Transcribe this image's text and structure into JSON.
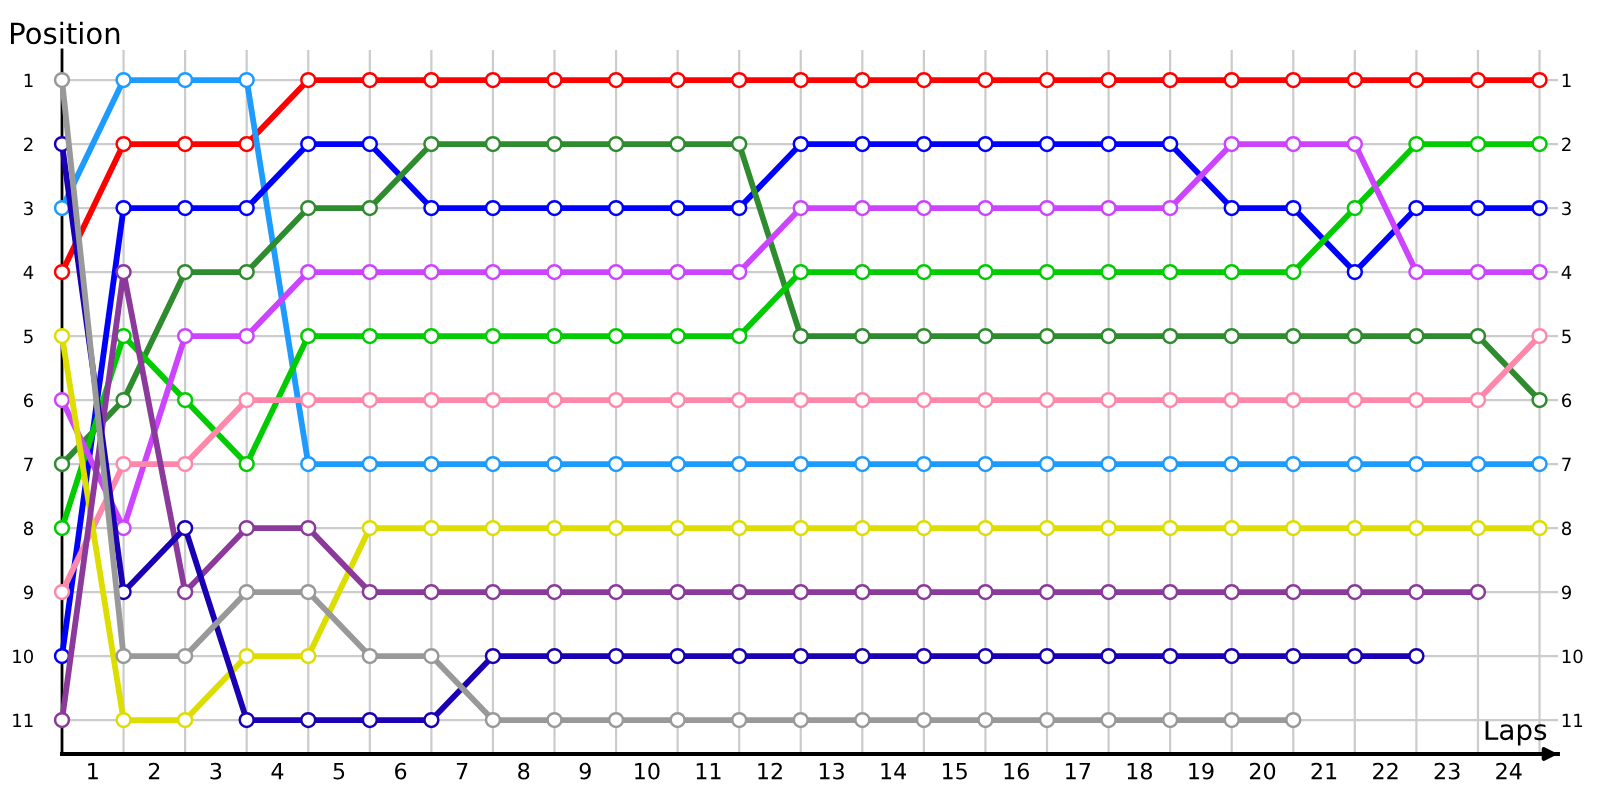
{
  "chart_data": {
    "type": "line",
    "xlabel": "Laps",
    "ylabel": "Position",
    "marker": "circle",
    "line_style": "solid",
    "grid": true,
    "x": [
      0,
      1,
      2,
      3,
      4,
      5,
      6,
      7,
      8,
      9,
      10,
      11,
      12,
      13,
      14,
      15,
      16,
      17,
      18,
      19,
      20,
      21,
      22,
      23,
      24
    ],
    "xlim": [
      0,
      24.3
    ],
    "xticks": [
      {
        "value": 1,
        "label": null
      },
      {
        "value": 2,
        "label": null
      },
      {
        "value": 3,
        "label": null
      },
      {
        "value": 4,
        "label": null
      },
      {
        "value": 5,
        "label": null
      },
      {
        "value": 6,
        "label": null
      },
      {
        "value": 7,
        "label": null
      },
      {
        "value": 8,
        "label": null
      },
      {
        "value": 9,
        "label": null
      },
      {
        "value": 10,
        "label": null
      },
      {
        "value": 11,
        "label": null
      },
      {
        "value": 12,
        "label": null
      },
      {
        "value": 13,
        "label": null
      },
      {
        "value": 14,
        "label": null
      },
      {
        "value": 15,
        "label": null
      },
      {
        "value": 16,
        "label": null
      },
      {
        "value": 17,
        "label": null
      },
      {
        "value": 18,
        "label": null
      },
      {
        "value": 19,
        "label": null
      },
      {
        "value": 20,
        "label": null
      },
      {
        "value": 21,
        "label": null
      },
      {
        "value": 22,
        "label": null
      },
      {
        "value": 23,
        "label": null
      },
      {
        "value": 24,
        "label": null
      },
      {
        "value": 0.5,
        "label": "1"
      },
      {
        "value": 1.5,
        "label": "2"
      },
      {
        "value": 2.5,
        "label": "3"
      },
      {
        "value": 3.5,
        "label": "4"
      },
      {
        "value": 4.5,
        "label": "5"
      },
      {
        "value": 5.5,
        "label": "6"
      },
      {
        "value": 6.5,
        "label": "7"
      },
      {
        "value": 7.5,
        "label": "8"
      },
      {
        "value": 8.5,
        "label": "9"
      },
      {
        "value": 9.5,
        "label": "10"
      },
      {
        "value": 10.5,
        "label": "11"
      },
      {
        "value": 11.5,
        "label": "12"
      },
      {
        "value": 12.5,
        "label": "13"
      },
      {
        "value": 13.5,
        "label": "14"
      },
      {
        "value": 14.5,
        "label": "15"
      },
      {
        "value": 15.5,
        "label": "16"
      },
      {
        "value": 16.5,
        "label": "17"
      },
      {
        "value": 17.5,
        "label": "18"
      },
      {
        "value": 18.5,
        "label": "19"
      },
      {
        "value": 19.5,
        "label": "20"
      },
      {
        "value": 20.5,
        "label": "21"
      },
      {
        "value": 21.5,
        "label": "22"
      },
      {
        "value": 22.5,
        "label": "23"
      },
      {
        "value": 23.5,
        "label": "24"
      }
    ],
    "ylim": [
      11.53,
      0.53
    ],
    "yticks": [
      1,
      2,
      3,
      4,
      5,
      6,
      7,
      8,
      9,
      10,
      11
    ],
    "y2lim": [
      11.53,
      0.53
    ],
    "y2ticks": [
      1,
      2,
      3,
      4,
      5,
      6,
      7,
      8,
      9,
      10,
      11
    ],
    "series": [
      {
        "color": "#ff0000",
        "values": [
          4,
          2,
          2,
          2,
          1,
          1,
          1,
          1,
          1,
          1,
          1,
          1,
          1,
          1,
          1,
          1,
          1,
          1,
          1,
          1,
          1,
          1,
          1,
          1,
          1
        ]
      },
      {
        "color": "#1e9bff",
        "values": [
          3,
          1,
          1,
          1,
          7,
          7,
          7,
          7,
          7,
          7,
          7,
          7,
          7,
          7,
          7,
          7,
          7,
          7,
          7,
          7,
          7,
          7,
          7,
          7,
          7
        ]
      },
      {
        "color": "#0000ff",
        "values": [
          10,
          3,
          3,
          3,
          2,
          2,
          3,
          3,
          3,
          3,
          3,
          3,
          2,
          2,
          2,
          2,
          2,
          2,
          2,
          3,
          3,
          4,
          3,
          3,
          3
        ]
      },
      {
        "color": "#2e8b2e",
        "values": [
          7,
          6,
          4,
          4,
          3,
          3,
          2,
          2,
          2,
          2,
          2,
          2,
          5,
          5,
          5,
          5,
          5,
          5,
          5,
          5,
          5,
          5,
          5,
          5,
          6
        ]
      },
      {
        "color": "#00cc00",
        "values": [
          8,
          5,
          6,
          7,
          5,
          5,
          5,
          5,
          5,
          5,
          5,
          5,
          4,
          4,
          4,
          4,
          4,
          4,
          4,
          4,
          4,
          3,
          2,
          2,
          2
        ]
      },
      {
        "color": "#cc44ff",
        "values": [
          6,
          8,
          5,
          5,
          4,
          4,
          4,
          4,
          4,
          4,
          4,
          4,
          3,
          3,
          3,
          3,
          3,
          3,
          3,
          2,
          2,
          2,
          4,
          4,
          4
        ]
      },
      {
        "color": "#ff88aa",
        "values": [
          9,
          7,
          7,
          6,
          6,
          6,
          6,
          6,
          6,
          6,
          6,
          6,
          6,
          6,
          6,
          6,
          6,
          6,
          6,
          6,
          6,
          6,
          6,
          6,
          5
        ]
      },
      {
        "color": "#dddd00",
        "values": [
          5,
          11,
          11,
          10,
          10,
          8,
          8,
          8,
          8,
          8,
          8,
          8,
          8,
          8,
          8,
          8,
          8,
          8,
          8,
          8,
          8,
          8,
          8,
          8,
          8
        ]
      },
      {
        "color": "#8b3a9b",
        "values": [
          11,
          4,
          9,
          8,
          8,
          9,
          9,
          9,
          9,
          9,
          9,
          9,
          9,
          9,
          9,
          9,
          9,
          9,
          9,
          9,
          9,
          9,
          9,
          9,
          null
        ]
      },
      {
        "color": "#1a00b4",
        "values": [
          2,
          9,
          8,
          11,
          11,
          11,
          11,
          10,
          10,
          10,
          10,
          10,
          10,
          10,
          10,
          10,
          10,
          10,
          10,
          10,
          10,
          10,
          10,
          null,
          null
        ]
      },
      {
        "color": "#999999",
        "values": [
          1,
          10,
          10,
          9,
          9,
          10,
          10,
          11,
          11,
          11,
          11,
          11,
          11,
          11,
          11,
          11,
          11,
          11,
          11,
          11,
          11,
          null,
          null,
          null,
          null
        ]
      }
    ]
  }
}
